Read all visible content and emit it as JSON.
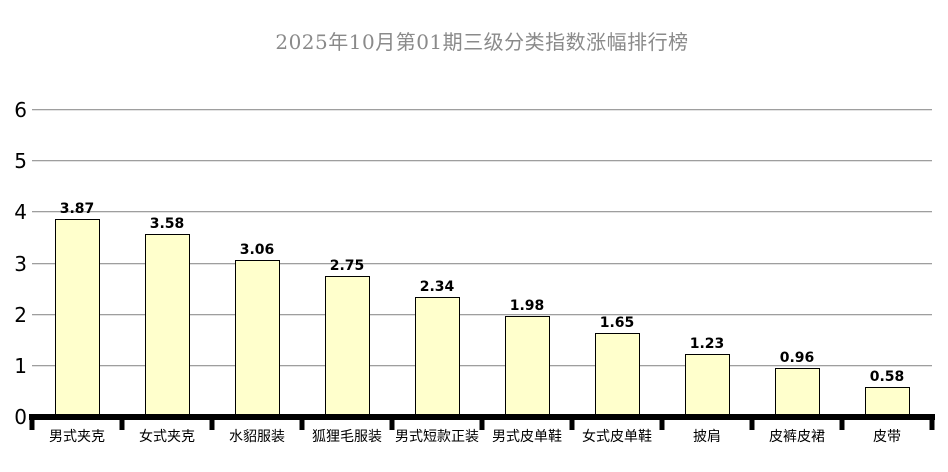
{
  "title": "2025年10月第01期三级分类指数涨幅排行榜",
  "colors": {
    "background": "#ffffff",
    "bar_fill": "#ffffcc",
    "bar_border": "#000000",
    "gridline": "#9e9e9e",
    "axis_line": "#000000",
    "title_text": "#8a8a8a",
    "value_label_text": "#000000",
    "category_label_text": "#000000"
  },
  "chart_data": {
    "type": "bar",
    "title": "2025年10月第01期三级分类指数涨幅排行榜",
    "categories": [
      "男式夹克",
      "女式夹克",
      "水貂服装",
      "狐狸毛服装",
      "男式短款正装",
      "男式皮单鞋",
      "女式皮单鞋",
      "披肩",
      "皮裤皮裙",
      "皮带"
    ],
    "values": [
      3.87,
      3.58,
      3.06,
      2.75,
      2.34,
      1.98,
      1.65,
      1.23,
      0.96,
      0.58
    ],
    "value_labels": [
      "3.87",
      "3.58",
      "3.06",
      "2.75",
      "2.34",
      "1.98",
      "1.65",
      "1.23",
      "0.96",
      "0.58"
    ],
    "xlabel": "",
    "ylabel": "",
    "y_ticks": [
      0,
      1,
      2,
      3,
      4,
      5,
      6
    ],
    "ylim": [
      0,
      6
    ],
    "grid": "horizontal",
    "legend": "none",
    "value_labels_visible": true
  }
}
